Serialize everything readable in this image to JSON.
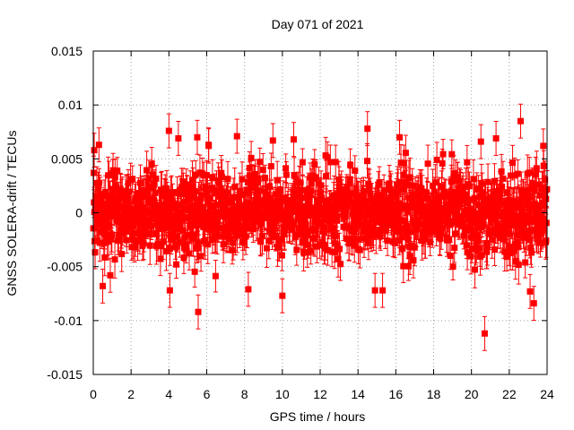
{
  "chart_data": {
    "type": "scatter",
    "title": "Day 071 of 2021",
    "xlabel": "GPS time / hours",
    "ylabel": "GNSS SOLERA-drift / TECUs",
    "xlim": [
      0,
      24
    ],
    "ylim": [
      -0.015,
      0.015
    ],
    "xticks": [
      0,
      2,
      4,
      6,
      8,
      10,
      12,
      14,
      16,
      18,
      20,
      22,
      24
    ],
    "xtick_labels": [
      "0",
      "2",
      "4",
      "6",
      "8",
      "10",
      "12",
      "14",
      "16",
      "18",
      "20",
      "22",
      "24"
    ],
    "yticks": [
      -0.015,
      -0.01,
      -0.005,
      0,
      0.005,
      0.01,
      0.015
    ],
    "ytick_labels": [
      "-0.015",
      "-0.01",
      "-0.005",
      "0",
      "0.005",
      "0.01",
      "0.015"
    ],
    "grid": true,
    "marker_color": "#ff0000",
    "series": [
      {
        "name": "SOLERA-drift",
        "note": "dense cloud of ~2880 points, approx. zero mean, std ~0.0022, errorbars ~0.0015",
        "bulk_std": 0.0022,
        "errorbar": 0.0015,
        "outliers": {
          "x": [
            0.05,
            0.3,
            0.5,
            0.9,
            4.0,
            4.05,
            4.5,
            5.5,
            5.55,
            6.1,
            7.6,
            8.2,
            9.5,
            10.0,
            10.6,
            14.5,
            14.9,
            15.3,
            16.2,
            20.5,
            20.7,
            21.3,
            22.6,
            23.1,
            23.3,
            23.8
          ],
          "y": [
            0.0058,
            0.0063,
            -0.0068,
            -0.0058,
            0.0076,
            -0.0072,
            0.0069,
            0.007,
            -0.0092,
            0.0063,
            0.0071,
            -0.0071,
            0.0067,
            -0.0077,
            0.0068,
            0.0078,
            -0.0072,
            -0.0072,
            0.007,
            0.0066,
            -0.0112,
            0.0069,
            0.0085,
            -0.0073,
            -0.0084,
            0.0062
          ]
        }
      }
    ]
  }
}
